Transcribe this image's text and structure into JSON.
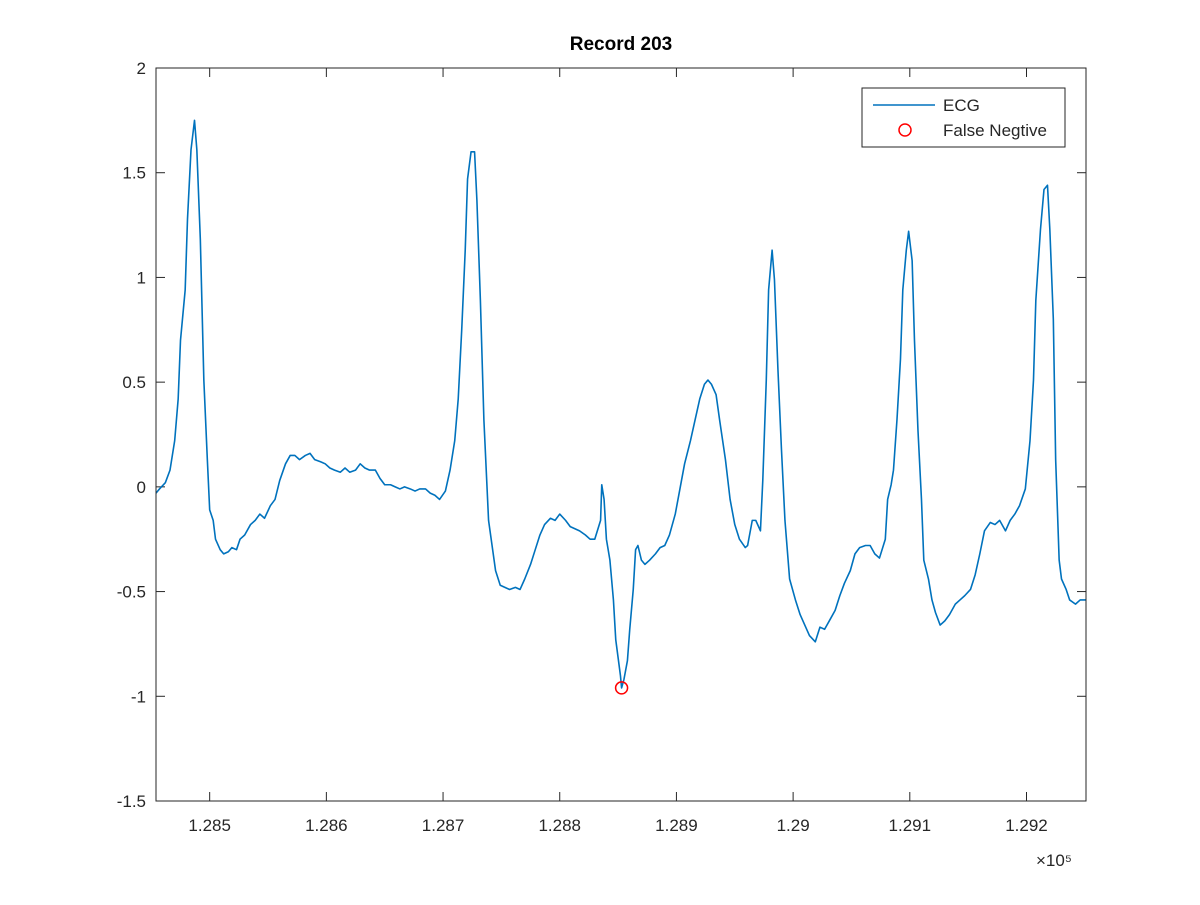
{
  "chart_data": {
    "type": "line",
    "title": "Record 203",
    "x_exponent_label": "×10⁵",
    "xlim": [
      128454,
      129251
    ],
    "xticks": [
      {
        "value": 128500,
        "label": "1.285"
      },
      {
        "value": 128600,
        "label": "1.286"
      },
      {
        "value": 128700,
        "label": "1.287"
      },
      {
        "value": 128800,
        "label": "1.288"
      },
      {
        "value": 128900,
        "label": "1.289"
      },
      {
        "value": 129000,
        "label": "1.29"
      },
      {
        "value": 129100,
        "label": "1.291"
      },
      {
        "value": 129200,
        "label": "1.292"
      }
    ],
    "ylim": [
      -1.5,
      2
    ],
    "yticks": [
      -1.5,
      -1,
      -0.5,
      0,
      0.5,
      1,
      1.5,
      2
    ],
    "grid": false,
    "legend": "upper right",
    "series": [
      {
        "name": "ECG",
        "color": "#0072bd",
        "mode": "line",
        "x": [
          128454,
          128457,
          128462,
          128466,
          128470,
          128473,
          128475,
          128479,
          128481,
          128484,
          128487,
          128489,
          128492,
          128495,
          128498,
          128500,
          128503,
          128505,
          128509,
          128512,
          128516,
          128519,
          128523,
          128526,
          128530,
          128535,
          128539,
          128543,
          128547,
          128552,
          128556,
          128560,
          128565,
          128569,
          128573,
          128577,
          128582,
          128586,
          128590,
          128595,
          128599,
          128603,
          128607,
          128612,
          128616,
          128620,
          128625,
          128629,
          128633,
          128637,
          128642,
          128646,
          128650,
          128655,
          128659,
          128663,
          128667,
          128672,
          128676,
          128680,
          128685,
          128689,
          128693,
          128697,
          128702,
          128706,
          128710,
          128713,
          128716,
          128719,
          128721,
          128724,
          128727,
          128729,
          128732,
          128735,
          128739,
          128742,
          128745,
          128749,
          128753,
          128757,
          128762,
          128766,
          128770,
          128775,
          128779,
          128783,
          128787,
          128792,
          128796,
          128800,
          128805,
          128809,
          128813,
          128817,
          128822,
          128826,
          128830,
          128835,
          128836,
          128838,
          128840,
          128843,
          128846,
          128848,
          128852,
          128853,
          128855,
          128858,
          128860,
          128863,
          128865,
          128867,
          128870,
          128873,
          128877,
          128882,
          128886,
          128890,
          128894,
          128899,
          128903,
          128907,
          128912,
          128916,
          128920,
          128924,
          128927,
          128930,
          128934,
          128937,
          128942,
          128946,
          128950,
          128954,
          128959,
          128961,
          128965,
          128968,
          128972,
          128974,
          128977,
          128979,
          128982,
          128984,
          128987,
          128990,
          128993,
          128997,
          129002,
          129006,
          129010,
          129014,
          129019,
          129023,
          129027,
          129032,
          129036,
          129040,
          129044,
          129049,
          129053,
          129057,
          129062,
          129066,
          129070,
          129074,
          129079,
          129081,
          129084,
          129086,
          129089,
          129092,
          129094,
          129097,
          129099,
          129102,
          129104,
          129107,
          129110,
          129112,
          129116,
          129119,
          129122,
          129126,
          129130,
          129134,
          129139,
          129143,
          129147,
          129152,
          129156,
          129160,
          129164,
          129169,
          129173,
          129177,
          129182,
          129186,
          129190,
          129194,
          129199,
          129203,
          129206,
          129208,
          129212,
          129215,
          129218,
          129220,
          129223,
          129225,
          129228,
          129230,
          129234,
          129237,
          129242,
          129246,
          129251
        ],
        "values": [
          -0.03,
          -0.01,
          0.02,
          0.08,
          0.22,
          0.42,
          0.7,
          0.94,
          1.28,
          1.61,
          1.75,
          1.61,
          1.18,
          0.51,
          0.13,
          -0.11,
          -0.16,
          -0.25,
          -0.3,
          -0.32,
          -0.31,
          -0.29,
          -0.3,
          -0.25,
          -0.23,
          -0.18,
          -0.16,
          -0.13,
          -0.15,
          -0.09,
          -0.06,
          0.03,
          0.11,
          0.15,
          0.15,
          0.13,
          0.15,
          0.16,
          0.13,
          0.12,
          0.11,
          0.09,
          0.08,
          0.07,
          0.09,
          0.07,
          0.08,
          0.11,
          0.09,
          0.08,
          0.08,
          0.04,
          0.01,
          0.01,
          0,
          -0.01,
          0,
          -0.01,
          -0.02,
          -0.01,
          -0.01,
          -0.03,
          -0.04,
          -0.06,
          -0.02,
          0.08,
          0.22,
          0.42,
          0.75,
          1.13,
          1.47,
          1.6,
          1.6,
          1.37,
          0.89,
          0.32,
          -0.16,
          -0.28,
          -0.4,
          -0.47,
          -0.48,
          -0.49,
          -0.48,
          -0.49,
          -0.44,
          -0.37,
          -0.3,
          -0.23,
          -0.18,
          -0.15,
          -0.16,
          -0.13,
          -0.16,
          -0.19,
          -0.2,
          -0.21,
          -0.23,
          -0.25,
          -0.25,
          -0.16,
          0.01,
          -0.06,
          -0.25,
          -0.35,
          -0.54,
          -0.73,
          -0.9,
          -0.96,
          -0.92,
          -0.83,
          -0.68,
          -0.49,
          -0.3,
          -0.28,
          -0.35,
          -0.37,
          -0.35,
          -0.32,
          -0.29,
          -0.28,
          -0.23,
          -0.13,
          -0.01,
          0.11,
          0.22,
          0.32,
          0.42,
          0.49,
          0.51,
          0.49,
          0.44,
          0.32,
          0.13,
          -0.06,
          -0.18,
          -0.25,
          -0.29,
          -0.28,
          -0.16,
          -0.16,
          -0.21,
          0.03,
          0.51,
          0.94,
          1.13,
          0.99,
          0.56,
          0.18,
          -0.16,
          -0.44,
          -0.54,
          -0.61,
          -0.66,
          -0.71,
          -0.74,
          -0.67,
          -0.68,
          -0.63,
          -0.59,
          -0.52,
          -0.46,
          -0.4,
          -0.32,
          -0.29,
          -0.28,
          -0.28,
          -0.32,
          -0.34,
          -0.25,
          -0.06,
          0.01,
          0.08,
          0.32,
          0.61,
          0.94,
          1.13,
          1.22,
          1.08,
          0.7,
          0.27,
          -0.06,
          -0.35,
          -0.44,
          -0.54,
          -0.6,
          -0.66,
          -0.64,
          -0.61,
          -0.56,
          -0.54,
          -0.52,
          -0.49,
          -0.42,
          -0.32,
          -0.21,
          -0.17,
          -0.18,
          -0.16,
          -0.21,
          -0.16,
          -0.13,
          -0.09,
          -0.01,
          0.22,
          0.51,
          0.89,
          1.23,
          1.42,
          1.44,
          1.23,
          0.8,
          0.13,
          -0.35,
          -0.44,
          -0.49,
          -0.54,
          -0.56,
          -0.54,
          -0.54
        ]
      },
      {
        "name": "False Negtive",
        "color": "#ff0000",
        "mode": "markers",
        "x": [
          128853
        ],
        "values": [
          -0.96
        ]
      }
    ]
  }
}
